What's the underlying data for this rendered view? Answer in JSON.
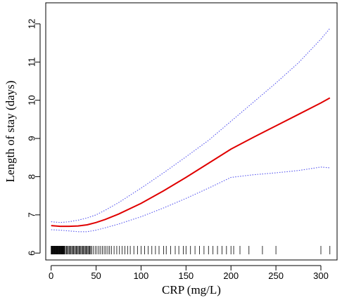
{
  "chart_data": {
    "type": "line",
    "xlabel": "CRP (mg/L)",
    "ylabel": "Length of stay (days)",
    "xlim": [
      -6,
      318
    ],
    "ylim": [
      5.82,
      12.55
    ],
    "x_ticks": [
      0,
      50,
      100,
      150,
      200,
      250,
      300
    ],
    "y_ticks": [
      6,
      7,
      8,
      9,
      10,
      11,
      12
    ],
    "grid": false,
    "legend": "none",
    "series": [
      {
        "role": "estimate",
        "style": "solid",
        "color": "#e00000",
        "x": [
          0,
          10,
          20,
          30,
          40,
          50,
          60,
          75,
          100,
          125,
          150,
          175,
          200,
          225,
          250,
          275,
          300,
          310
        ],
        "y": [
          6.72,
          6.7,
          6.7,
          6.71,
          6.74,
          6.8,
          6.88,
          7.02,
          7.3,
          7.63,
          7.98,
          8.35,
          8.72,
          9.03,
          9.33,
          9.63,
          9.93,
          10.06
        ]
      },
      {
        "role": "upper-ci",
        "style": "dotted",
        "color": "#5555ee",
        "x": [
          0,
          10,
          20,
          30,
          40,
          50,
          60,
          75,
          100,
          125,
          150,
          175,
          200,
          225,
          250,
          275,
          300,
          310
        ],
        "y": [
          6.82,
          6.8,
          6.82,
          6.86,
          6.92,
          7.0,
          7.12,
          7.32,
          7.7,
          8.1,
          8.52,
          8.95,
          9.45,
          9.95,
          10.45,
          10.98,
          11.6,
          11.88
        ]
      },
      {
        "role": "lower-ci",
        "style": "dotted",
        "color": "#5555ee",
        "x": [
          0,
          10,
          20,
          30,
          40,
          50,
          60,
          75,
          100,
          125,
          150,
          175,
          200,
          225,
          250,
          275,
          300,
          310
        ],
        "y": [
          6.61,
          6.6,
          6.58,
          6.56,
          6.56,
          6.6,
          6.66,
          6.76,
          6.95,
          7.18,
          7.43,
          7.7,
          7.98,
          8.05,
          8.1,
          8.16,
          8.25,
          8.23
        ]
      }
    ],
    "rug": [
      0,
      0.5,
      1,
      1.5,
      2,
      2.5,
      3,
      3.5,
      4,
      4.5,
      5,
      5.5,
      6,
      6.5,
      7,
      7.5,
      8,
      8.5,
      9,
      9.5,
      10,
      10.5,
      11,
      11.5,
      12,
      12.5,
      13,
      13.5,
      14,
      14.5,
      15,
      16,
      17,
      18,
      19,
      20,
      21,
      22,
      23,
      24,
      25,
      26,
      27,
      28,
      29,
      30,
      31,
      32,
      33,
      34,
      35,
      36,
      37,
      38,
      39,
      40,
      41,
      42,
      43,
      44,
      45,
      47,
      49,
      51,
      53,
      55,
      57,
      59,
      61,
      63,
      65,
      67,
      70,
      73,
      76,
      79,
      82,
      85,
      88,
      92,
      96,
      100,
      104,
      108,
      112,
      116,
      120,
      125,
      128,
      133,
      138,
      142,
      147,
      150,
      155,
      160,
      165,
      170,
      175,
      180,
      185,
      190,
      195,
      200,
      203,
      210,
      220,
      235,
      250,
      300,
      310
    ]
  }
}
